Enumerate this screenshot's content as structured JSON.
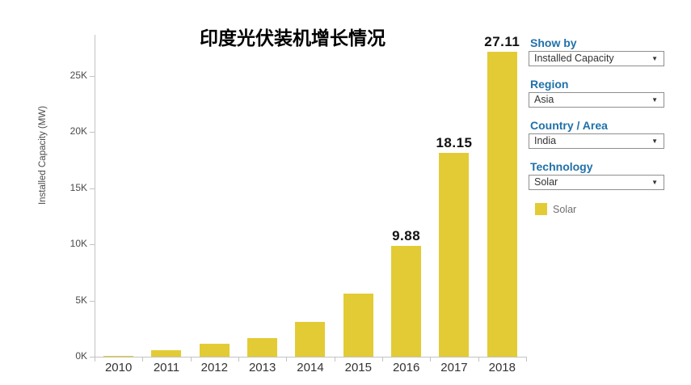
{
  "chart_data": {
    "type": "bar",
    "title": "印度光伏装机增长情况",
    "ylabel": "Installed Capacity (MW)",
    "xlabel": "",
    "categories": [
      "2010",
      "2011",
      "2012",
      "2013",
      "2014",
      "2015",
      "2016",
      "2017",
      "2018"
    ],
    "values": [
      0.07,
      0.57,
      1.18,
      1.69,
      3.06,
      5.59,
      9.88,
      18.15,
      27.11
    ],
    "value_labels": [
      "",
      "",
      "",
      "",
      "",
      "",
      "9.88",
      "18.15",
      "27.11"
    ],
    "unit": "K MW (thousand megawatts)",
    "ytick_labels": [
      "0K",
      "5K",
      "10K",
      "15K",
      "20K",
      "25K"
    ],
    "ytick_values": [
      0,
      5,
      10,
      15,
      20,
      25
    ],
    "ylim": [
      0,
      28.6
    ],
    "grid": false,
    "bar_color": "#E3CB35",
    "legend_position": "right",
    "legend": {
      "label": "Solar",
      "color": "#E3CB35"
    }
  },
  "sidebar": {
    "filters": [
      {
        "label": "Show by",
        "value": "Installed Capacity"
      },
      {
        "label": "Region",
        "value": "Asia"
      },
      {
        "label": "Country / Area",
        "value": "India"
      },
      {
        "label": "Technology",
        "value": "Solar"
      }
    ],
    "legend": {
      "label": "Solar"
    }
  },
  "icons": {
    "dropdown_caret": "▼"
  },
  "colors": {
    "accent_blue": "#2071A9",
    "bar_yellow": "#E3CB35",
    "axis_gray": "#c3c3c3",
    "text_dark": "#333333",
    "legend_text": "#6f6f6f"
  }
}
